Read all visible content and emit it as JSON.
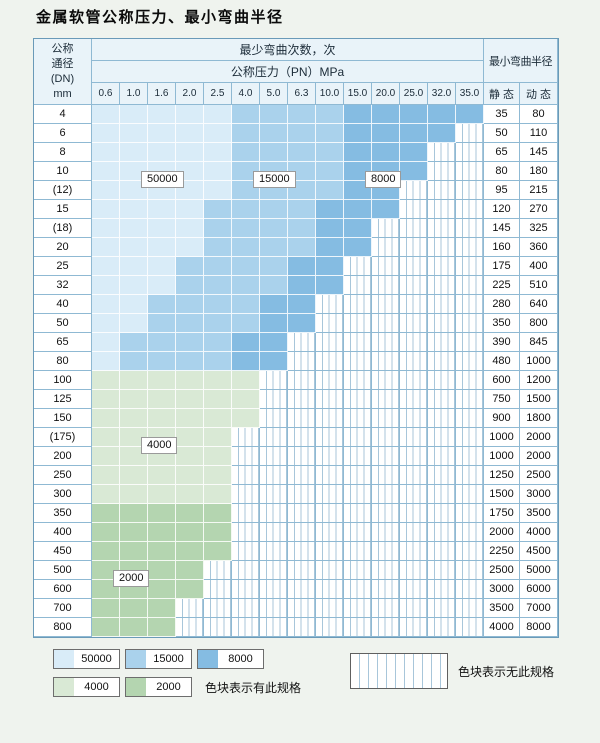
{
  "page": {
    "title": "金属软管公称压力、最小弯曲半径"
  },
  "table": {
    "corner_lines": [
      "公称",
      "通径",
      "(DN)",
      "mm"
    ],
    "bend_cycles_header": "最少弯曲次数，次",
    "radius_header": "最小弯曲半径",
    "pressure_header": "公称压力（PN）MPa",
    "pressure_columns": [
      "0.6",
      "1.0",
      "1.6",
      "2.0",
      "2.5",
      "4.0",
      "5.0",
      "6.3",
      "10.0",
      "15.0",
      "20.0",
      "25.0",
      "32.0",
      "35.0"
    ],
    "static_header": "静 态",
    "dynamic_header": "动 态",
    "rows": [
      {
        "dn": "4",
        "zones": "55555111188888",
        "static": "35",
        "dynamic": "80"
      },
      {
        "dn": "6",
        "zones": "5555511118888x",
        "static": "50",
        "dynamic": "110"
      },
      {
        "dn": "8",
        "zones": "555551111888xx",
        "static": "65",
        "dynamic": "145"
      },
      {
        "dn": "10",
        "zones": "555551111888xx",
        "static": "80",
        "dynamic": "180"
      },
      {
        "dn": "(12)",
        "zones": "55555111188xxx",
        "static": "95",
        "dynamic": "215"
      },
      {
        "dn": "15",
        "zones": "55551111888xxx",
        "static": "120",
        "dynamic": "270"
      },
      {
        "dn": "(18)",
        "zones": "5555111188xxxx",
        "static": "145",
        "dynamic": "325"
      },
      {
        "dn": "20",
        "zones": "5555111188xxxx",
        "static": "160",
        "dynamic": "360"
      },
      {
        "dn": "25",
        "zones": "555111188xxxxx",
        "static": "175",
        "dynamic": "400"
      },
      {
        "dn": "32",
        "zones": "555111188xxxxx",
        "static": "225",
        "dynamic": "510"
      },
      {
        "dn": "40",
        "zones": "55111188xxxxxx",
        "static": "280",
        "dynamic": "640"
      },
      {
        "dn": "50",
        "zones": "55111188xxxxxx",
        "static": "350",
        "dynamic": "800"
      },
      {
        "dn": "65",
        "zones": "5111188xxxxxxx",
        "static": "390",
        "dynamic": "845"
      },
      {
        "dn": "80",
        "zones": "5111188xxxxxxx",
        "static": "480",
        "dynamic": "1000"
      },
      {
        "dn": "100",
        "zones": "444444xxxxxxxx",
        "static": "600",
        "dynamic": "1200"
      },
      {
        "dn": "125",
        "zones": "444444xxxxxxxx",
        "static": "750",
        "dynamic": "1500"
      },
      {
        "dn": "150",
        "zones": "444444xxxxxxxx",
        "static": "900",
        "dynamic": "1800"
      },
      {
        "dn": "(175)",
        "zones": "44444xxxxxxxxx",
        "static": "1000",
        "dynamic": "2000"
      },
      {
        "dn": "200",
        "zones": "44444xxxxxxxxx",
        "static": "1000",
        "dynamic": "2000"
      },
      {
        "dn": "250",
        "zones": "44444xxxxxxxxx",
        "static": "1250",
        "dynamic": "2500"
      },
      {
        "dn": "300",
        "zones": "44444xxxxxxxxx",
        "static": "1500",
        "dynamic": "3000"
      },
      {
        "dn": "350",
        "zones": "22222xxxxxxxxx",
        "static": "1750",
        "dynamic": "3500"
      },
      {
        "dn": "400",
        "zones": "22222xxxxxxxxx",
        "static": "2000",
        "dynamic": "4000"
      },
      {
        "dn": "450",
        "zones": "22222xxxxxxxxx",
        "static": "2250",
        "dynamic": "4500"
      },
      {
        "dn": "500",
        "zones": "2222xxxxxxxxxx",
        "static": "2500",
        "dynamic": "5000"
      },
      {
        "dn": "600",
        "zones": "2222xxxxxxxxxx",
        "static": "3000",
        "dynamic": "6000"
      },
      {
        "dn": "700",
        "zones": "222xxxxxxxxxxx",
        "static": "3500",
        "dynamic": "7000"
      },
      {
        "dn": "800",
        "zones": "222xxxxxxxxxxx",
        "static": "4000",
        "dynamic": "8000"
      }
    ]
  },
  "zone_colors": {
    "5": "#d9ecf8",
    "1": "#aad2ec",
    "8": "#85bce2",
    "4": "#d9e9d5",
    "2": "#b4d5b0"
  },
  "overlay_labels": [
    {
      "text": "50000",
      "col": 2,
      "row": 3
    },
    {
      "text": "15000",
      "col": 6,
      "row": 3
    },
    {
      "text": "8000",
      "col": 10,
      "row": 3
    },
    {
      "text": "4000",
      "col": 2,
      "row": 17
    },
    {
      "text": "2000",
      "col": 1,
      "row": 24
    }
  ],
  "legend": {
    "items": [
      {
        "label": "50000",
        "zone": "5"
      },
      {
        "label": "15000",
        "zone": "1"
      },
      {
        "label": "8000",
        "zone": "8"
      },
      {
        "label": "4000",
        "zone": "4"
      },
      {
        "label": "2000",
        "zone": "2"
      }
    ],
    "has_spec_text": "色块表示有此规格",
    "no_spec_text": "色块表示无此规格"
  }
}
